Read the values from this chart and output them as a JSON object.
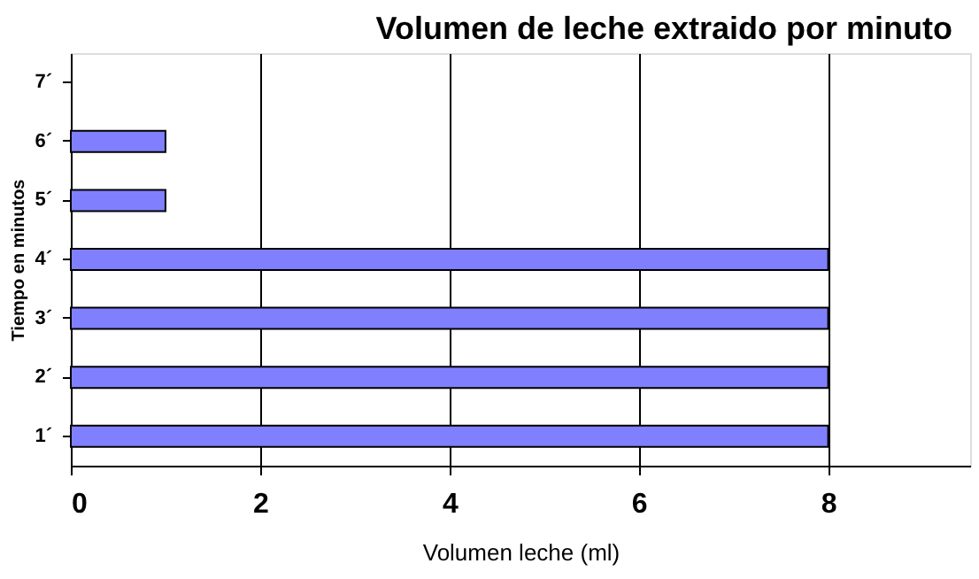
{
  "chart_data": {
    "type": "bar",
    "orientation": "horizontal",
    "title": "Volumen de leche extraido por minuto",
    "xlabel": "Volumen leche (ml)",
    "ylabel": "Tiempo en minutos",
    "categories": [
      "7´",
      "6´",
      "5´",
      "4´",
      "3´",
      "2´",
      "1´"
    ],
    "values": [
      null,
      1,
      1,
      8,
      8,
      8,
      8
    ],
    "color": "#8080ff",
    "xlim": [
      0,
      9.5
    ],
    "xticks": [
      0,
      2,
      4,
      6,
      8
    ],
    "grid": "x"
  }
}
